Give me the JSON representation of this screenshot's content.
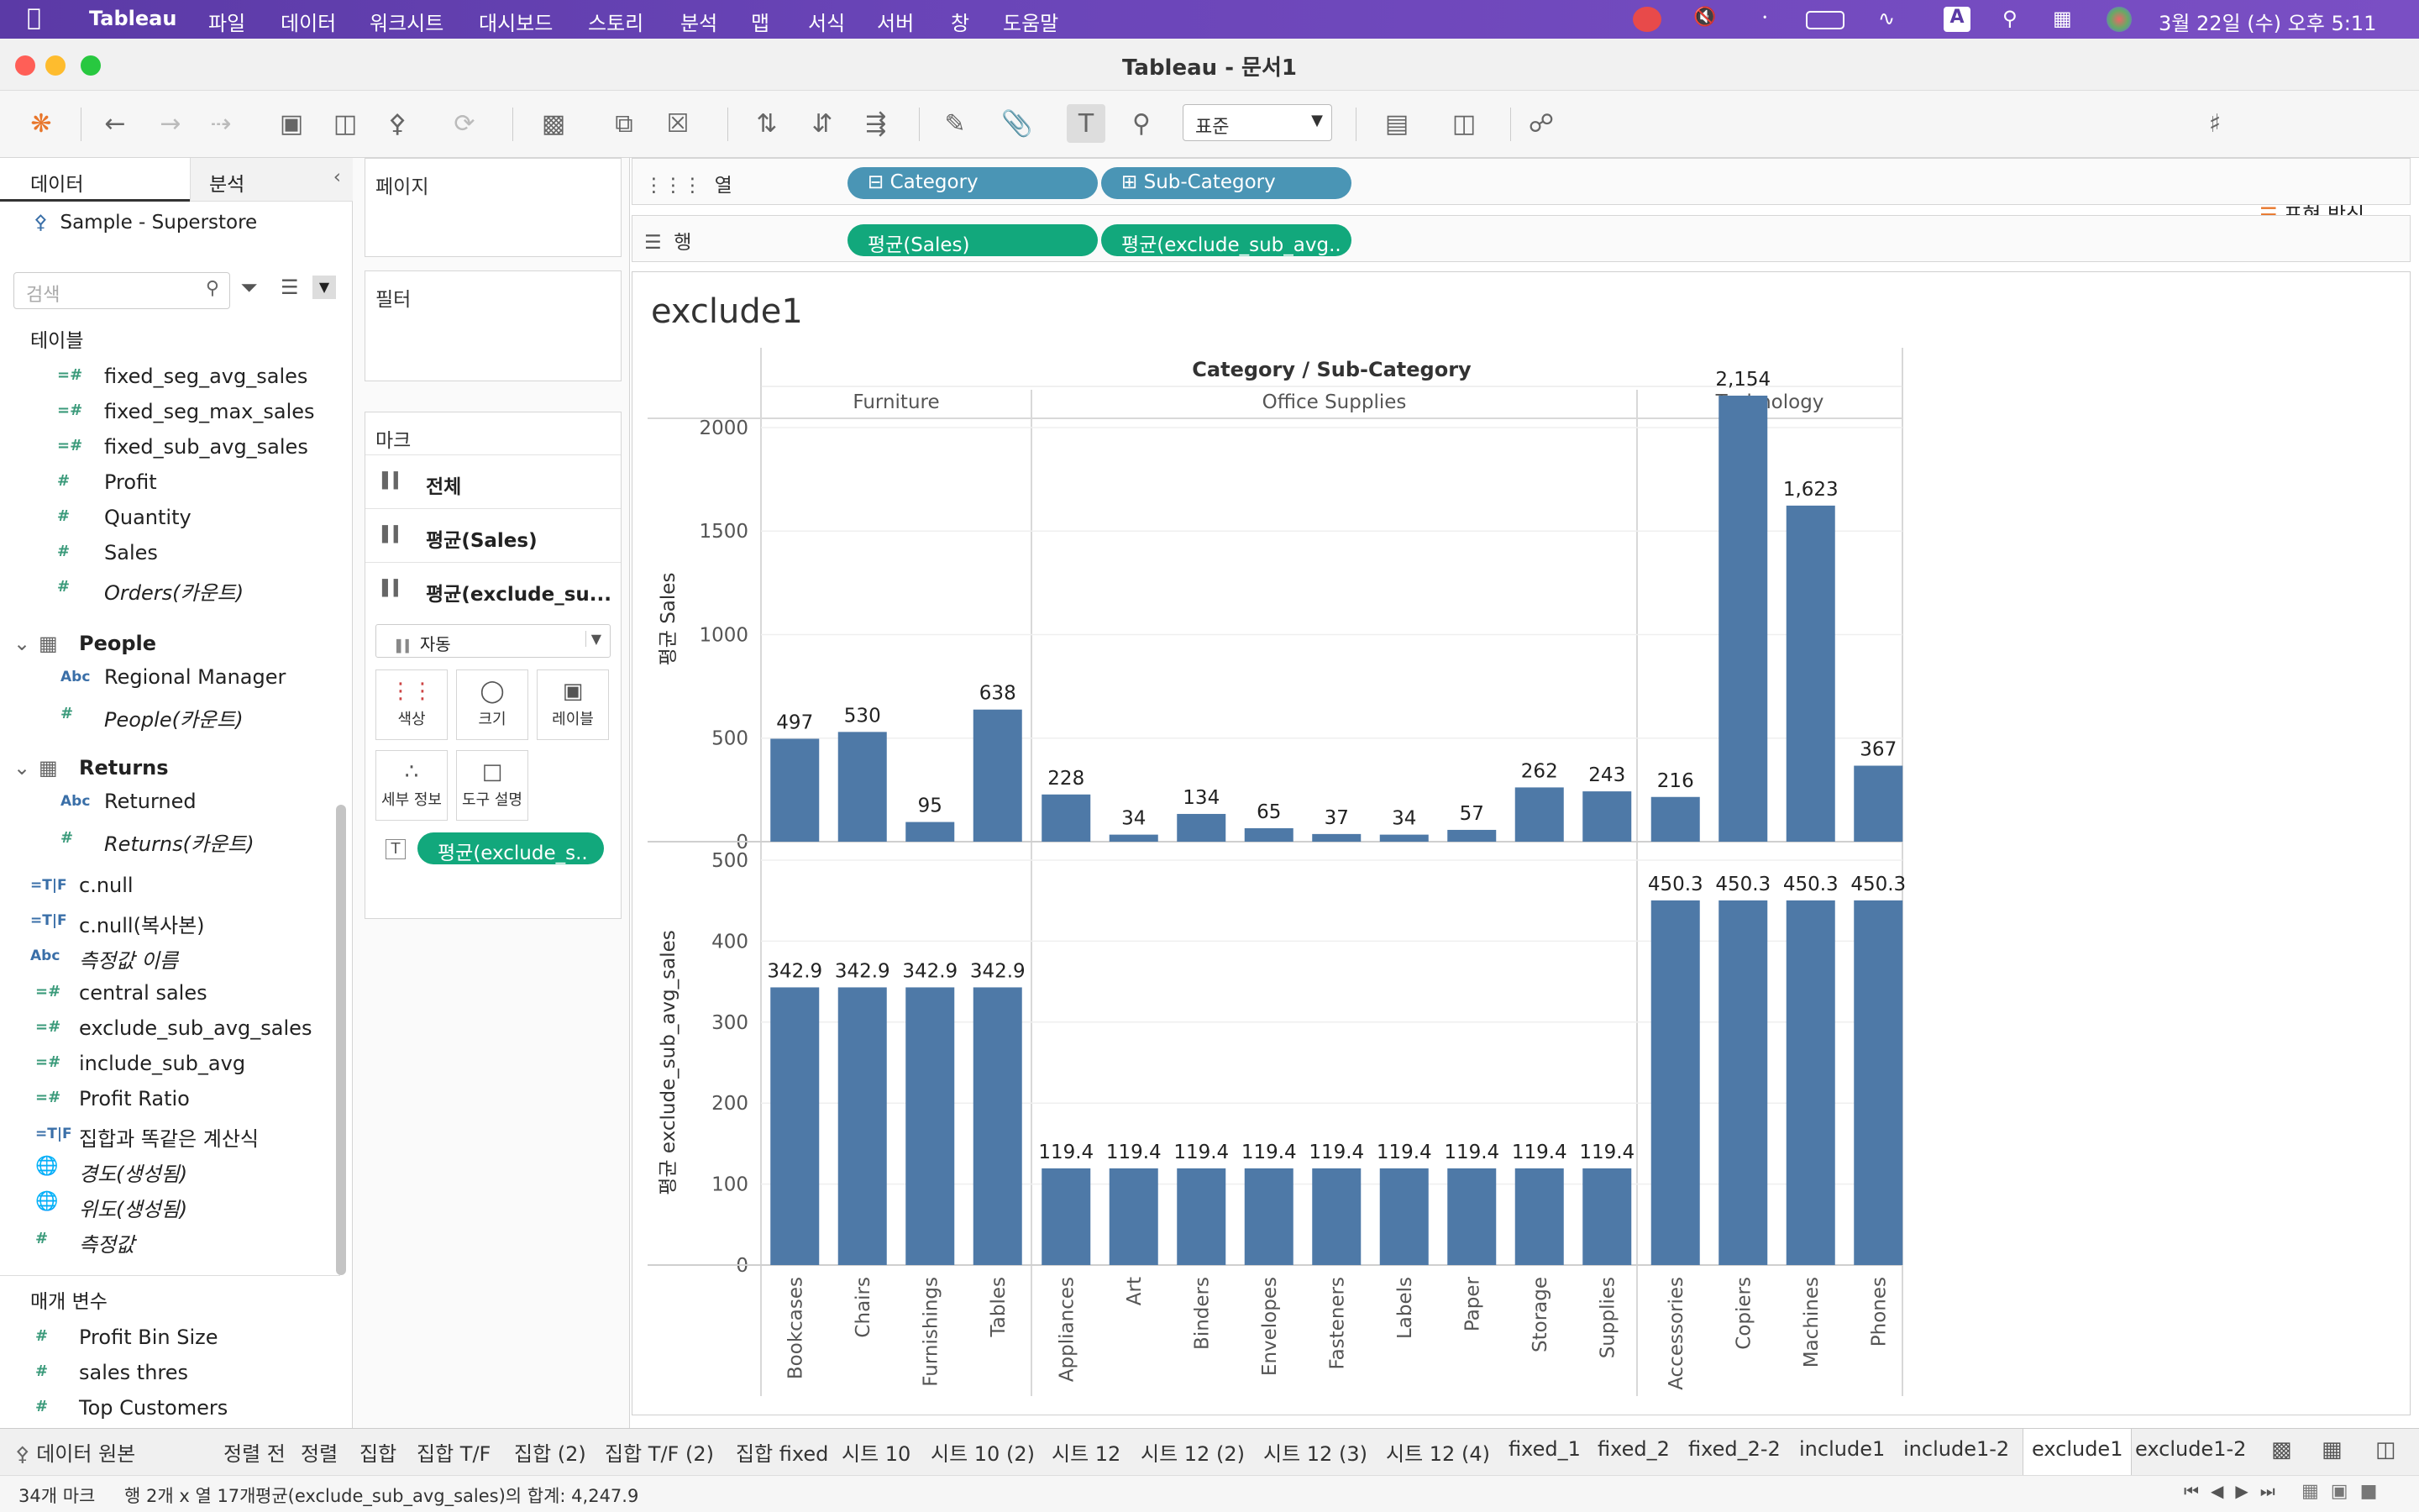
{
  "menubar": {
    "app": "Tableau",
    "items": [
      "파일",
      "데이터",
      "워크시트",
      "대시보드",
      "스토리",
      "분석",
      "맵",
      "서식",
      "서버",
      "창",
      "도움말"
    ],
    "clock": "3월 22일 (수) 오후 5:11",
    "input_indicator": "A"
  },
  "window": {
    "title": "Tableau - 문서1"
  },
  "toolbar": {
    "font_size": "표준",
    "show_me": "표현 방식"
  },
  "leftpanel": {
    "tab_data": "데이터",
    "tab_analysis": "분석",
    "datasource": "Sample - Superstore",
    "search_placeholder": "검색",
    "tables_header": "테이블",
    "fields_top": [
      {
        "icon": "=#",
        "label": "fixed_seg_avg_sales",
        "italic": false
      },
      {
        "icon": "=#",
        "label": "fixed_seg_max_sales",
        "italic": false
      },
      {
        "icon": "=#",
        "label": "fixed_sub_avg_sales",
        "italic": false
      },
      {
        "icon": "#",
        "label": "Profit",
        "italic": false
      },
      {
        "icon": "#",
        "label": "Quantity",
        "italic": false
      },
      {
        "icon": "#",
        "label": "Sales",
        "italic": false
      },
      {
        "icon": "#",
        "label": "Orders(카운트)",
        "italic": true
      }
    ],
    "group_people": "People",
    "people_fields": [
      {
        "icon": "Abc",
        "label": "Regional Manager",
        "italic": false
      },
      {
        "icon": "#",
        "label": "People(카운트)",
        "italic": true
      }
    ],
    "group_returns": "Returns",
    "returns_fields": [
      {
        "icon": "Abc",
        "label": "Returned",
        "italic": false
      },
      {
        "icon": "#",
        "label": "Returns(카운트)",
        "italic": true
      }
    ],
    "calc_fields": [
      {
        "icon": "=T|F",
        "label": "c.null",
        "italic": false
      },
      {
        "icon": "=T|F",
        "label": "c.null(복사본)",
        "italic": false
      },
      {
        "icon": "Abc",
        "label": "측정값 이름",
        "italic": true
      }
    ],
    "measure_fields": [
      {
        "icon": "=#",
        "label": "central sales",
        "italic": false
      },
      {
        "icon": "=#",
        "label": "exclude_sub_avg_sales",
        "italic": false
      },
      {
        "icon": "=#",
        "label": "include_sub_avg",
        "italic": false
      },
      {
        "icon": "=#",
        "label": "Profit Ratio",
        "italic": false
      },
      {
        "icon": "=T|F",
        "label": "집합과 똑같은 계산식",
        "italic": false
      },
      {
        "icon": "globe",
        "label": "경도(생성됨)",
        "italic": true
      },
      {
        "icon": "globe",
        "label": "위도(생성됨)",
        "italic": true
      },
      {
        "icon": "#",
        "label": "측정값",
        "italic": true
      }
    ],
    "params_header": "매개 변수",
    "params": [
      {
        "icon": "#",
        "label": "Profit Bin Size"
      },
      {
        "icon": "#",
        "label": "sales thres"
      },
      {
        "icon": "#",
        "label": "Top Customers"
      }
    ]
  },
  "midpanel": {
    "pages": "페이지",
    "filters": "필터",
    "marks": "마크",
    "mark_rows": [
      "전체",
      "평균(Sales)",
      "평균(exclude_su..."
    ],
    "mark_type": "자동",
    "btn_color": "색상",
    "btn_size": "크기",
    "btn_label": "레이블",
    "btn_detail": "세부 정보",
    "btn_tooltip": "도구 설명",
    "label_pill": "평균(exclude_s.."
  },
  "shelves": {
    "columns_label": "열",
    "rows_label": "행",
    "col_pills": [
      "Category",
      "Sub-Category"
    ],
    "row_pills": [
      "평균(Sales)",
      "평균(exclude_sub_avg.."
    ]
  },
  "sheet_title": "exclude1",
  "chart_data": {
    "type": "bar",
    "header": "Category / Sub-Category",
    "groups": [
      {
        "name": "Furniture",
        "subs": [
          "Bookcases",
          "Chairs",
          "Furnishings",
          "Tables"
        ]
      },
      {
        "name": "Office Supplies",
        "subs": [
          "Appliances",
          "Art",
          "Binders",
          "Envelopes",
          "Fasteners",
          "Labels",
          "Paper",
          "Storage",
          "Supplies"
        ]
      },
      {
        "name": "Technology",
        "subs": [
          "Accessories",
          "Copiers",
          "Machines",
          "Phones"
        ]
      }
    ],
    "categories": [
      "Bookcases",
      "Chairs",
      "Furnishings",
      "Tables",
      "Appliances",
      "Art",
      "Binders",
      "Envelopes",
      "Fasteners",
      "Labels",
      "Paper",
      "Storage",
      "Supplies",
      "Accessories",
      "Copiers",
      "Machines",
      "Phones"
    ],
    "series": [
      {
        "name": "평균 Sales",
        "values": [
          497,
          530,
          95,
          638,
          228,
          34,
          134,
          65,
          37,
          34,
          57,
          262,
          243,
          216,
          2154,
          1623,
          367
        ],
        "labels": [
          "497",
          "530",
          "95",
          "638",
          "228",
          "34",
          "134",
          "65",
          "37",
          "34",
          "57",
          "262",
          "243",
          "216",
          "2,154",
          "1,623",
          "367"
        ],
        "ylim": [
          0,
          2150
        ],
        "ticks": [
          0,
          500,
          1000,
          1500,
          2000
        ]
      },
      {
        "name": "평균 exclude_sub_avg_sales",
        "values": [
          342.9,
          342.9,
          342.9,
          342.9,
          119.4,
          119.4,
          119.4,
          119.4,
          119.4,
          119.4,
          119.4,
          119.4,
          119.4,
          450.3,
          450.3,
          450.3,
          450.3
        ],
        "labels": [
          "342.9",
          "342.9",
          "342.9",
          "342.9",
          "119.4",
          "119.4",
          "119.4",
          "119.4",
          "119.4",
          "119.4",
          "119.4",
          "119.4",
          "119.4",
          "450.3",
          "450.3",
          "450.3",
          "450.3"
        ],
        "ylim": [
          0,
          500
        ],
        "ticks": [
          0,
          100,
          200,
          300,
          400,
          500
        ]
      }
    ],
    "bar_color": "#4e79a7"
  },
  "bottomtabs": {
    "datasource": "데이터 원본",
    "sheets": [
      "정렬 전",
      "정렬",
      "집합",
      "집합 T/F",
      "집합 (2)",
      "집합 T/F (2)",
      "집합 fixed",
      "시트 10",
      "시트 10 (2)",
      "시트 12",
      "시트 12 (2)",
      "시트 12 (3)",
      "시트 12 (4)",
      "fixed_1",
      "fixed_2",
      "fixed_2-2",
      "include1",
      "include1-2",
      "exclude1",
      "exclude1-2"
    ],
    "active": "exclude1"
  },
  "statusbar": {
    "marks": "34개 마크",
    "rows_cols": "행 2개 x 열 17개",
    "sum": "평균(exclude_sub_avg_sales)의 합계: 4,247.9"
  }
}
